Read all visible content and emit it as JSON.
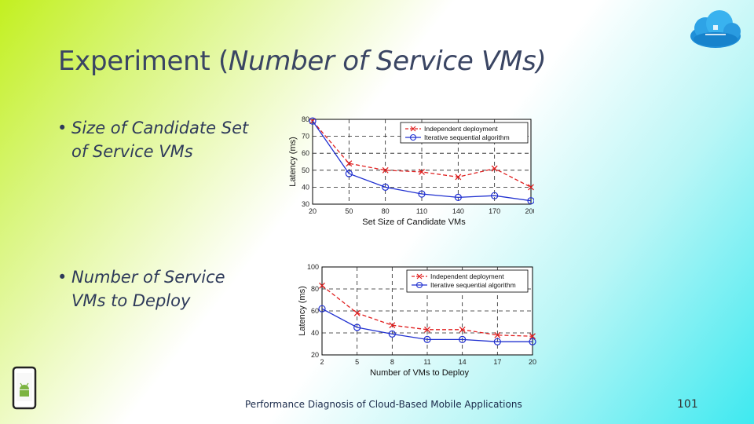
{
  "slide": {
    "title_main": "Experiment (",
    "title_italic": "Number of Service VMs)",
    "bullets": [
      "Size of Candidate Set of Service VMs",
      "Number of Service VMs to Deploy"
    ],
    "bullet_lines": [
      [
        "Size of Candidate Set",
        "of Service VMs"
      ],
      [
        "Number of Service",
        "VMs to Deploy"
      ]
    ],
    "footer": "Performance Diagnosis of Cloud-Based Mobile Applications",
    "page_number": "101",
    "logo_icon": "cloud-logo-icon",
    "phone_icon": "android-phone-icon"
  },
  "chart_data": [
    {
      "type": "line",
      "xlabel": "Set Size of Candidate VMs",
      "ylabel": "Latency (ms)",
      "x": [
        20,
        50,
        80,
        110,
        140,
        170,
        200
      ],
      "xlim": [
        20,
        200
      ],
      "ylim": [
        30,
        80
      ],
      "yticks": [
        30,
        40,
        50,
        60,
        70,
        80
      ],
      "grid": true,
      "legend_position": "top-right",
      "series": [
        {
          "name": "Independent deployment",
          "marker": "x",
          "color": "#e02020",
          "values": [
            79,
            54,
            50,
            49,
            46,
            51,
            40
          ]
        },
        {
          "name": "Iterative sequential algorithm",
          "marker": "o",
          "color": "#2030d0",
          "values": [
            79,
            48,
            40,
            36,
            34,
            35,
            32
          ]
        }
      ]
    },
    {
      "type": "line",
      "xlabel": "Number of VMs to Deploy",
      "ylabel": "Latency (ms)",
      "x": [
        2,
        5,
        8,
        11,
        14,
        17,
        20
      ],
      "xlim": [
        2,
        20
      ],
      "ylim": [
        20,
        100
      ],
      "yticks": [
        20,
        40,
        60,
        80,
        100
      ],
      "grid": true,
      "legend_position": "top-right",
      "series": [
        {
          "name": "Independent deployment",
          "marker": "x",
          "color": "#e02020",
          "values": [
            83,
            58,
            47,
            43,
            43,
            38,
            37
          ]
        },
        {
          "name": "Iterative sequential algorithm",
          "marker": "o",
          "color": "#2030d0",
          "values": [
            62,
            45,
            39,
            34,
            34,
            32,
            32
          ]
        }
      ]
    }
  ]
}
